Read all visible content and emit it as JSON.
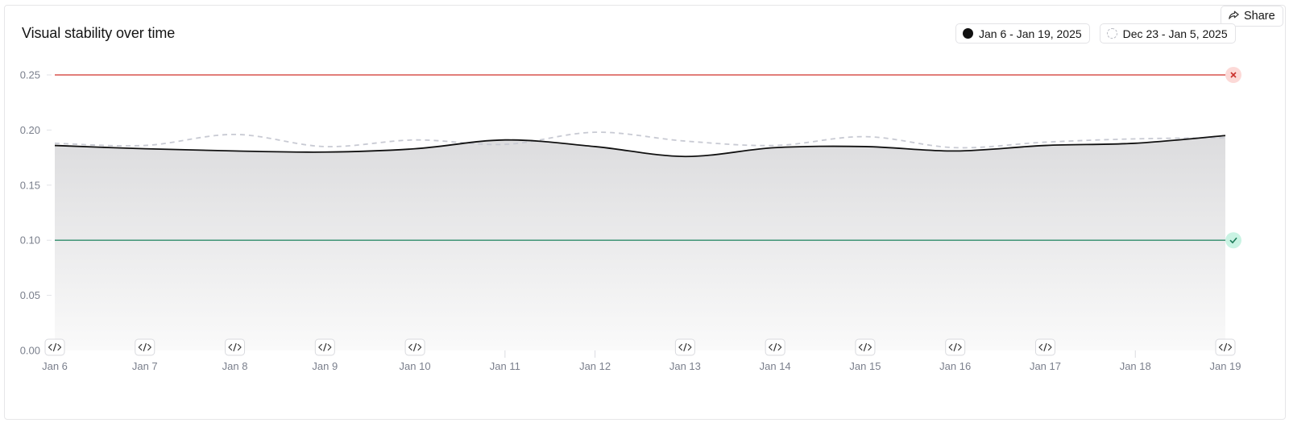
{
  "header": {
    "title": "Visual stability over time",
    "share_label": "Share"
  },
  "legend": {
    "current_label": "Jan 6 - Jan 19, 2025",
    "previous_label": "Dec 23 - Jan 5, 2025"
  },
  "icons": {
    "share": "share-icon",
    "poor_threshold": "x-icon",
    "good_threshold": "check-icon",
    "deploy_marker": "code-icon"
  },
  "colors": {
    "poor_threshold": "#d9534f",
    "good_threshold": "#2e8b6a",
    "current_line": "#111111",
    "previous_line": "#c8cad3"
  },
  "chart_data": {
    "type": "area",
    "title": "Visual stability over time",
    "x": [
      "Jan 6",
      "Jan 7",
      "Jan 8",
      "Jan 9",
      "Jan 10",
      "Jan 11",
      "Jan 12",
      "Jan 13",
      "Jan 14",
      "Jan 15",
      "Jan 16",
      "Jan 17",
      "Jan 18",
      "Jan 19"
    ],
    "yticks": [
      "0.00",
      "0.05",
      "0.10",
      "0.15",
      "0.20",
      "0.25"
    ],
    "ylim": [
      0,
      0.25
    ],
    "grid": false,
    "series": [
      {
        "name": "Jan 6 - Jan 19, 2025",
        "style": "solid-area",
        "values": [
          0.186,
          0.183,
          0.181,
          0.18,
          0.183,
          0.191,
          0.185,
          0.176,
          0.184,
          0.185,
          0.181,
          0.186,
          0.188,
          0.195
        ]
      },
      {
        "name": "Dec 23 - Jan 5, 2025",
        "style": "dashed",
        "values": [
          0.188,
          0.186,
          0.196,
          0.185,
          0.191,
          0.187,
          0.198,
          0.19,
          0.186,
          0.194,
          0.184,
          0.189,
          0.192,
          0.193
        ]
      }
    ],
    "thresholds": [
      {
        "value": 0.25,
        "status": "poor"
      },
      {
        "value": 0.1,
        "status": "good"
      }
    ],
    "deploy_markers": [
      "Jan 6",
      "Jan 7",
      "Jan 8",
      "Jan 9",
      "Jan 10",
      "Jan 13",
      "Jan 14",
      "Jan 15",
      "Jan 16",
      "Jan 17",
      "Jan 19"
    ]
  }
}
